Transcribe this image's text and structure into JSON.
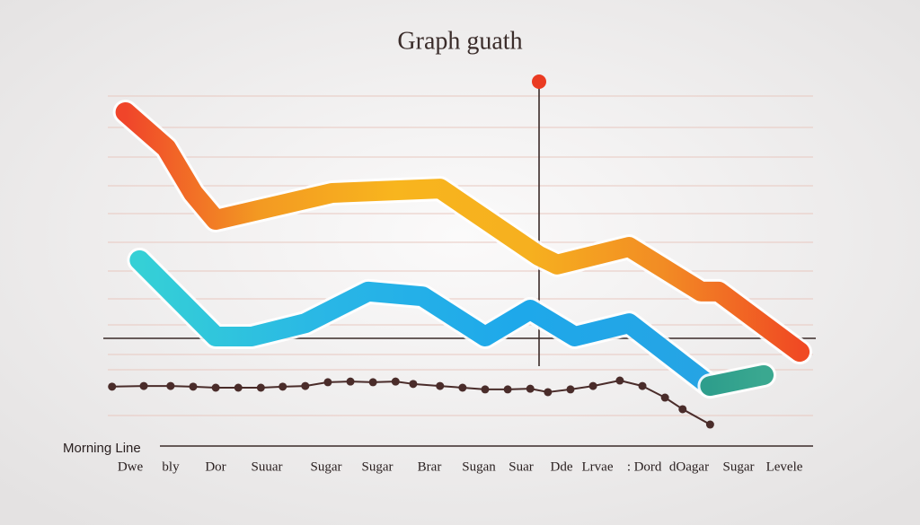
{
  "chart_data": {
    "type": "line",
    "title": "Graph  guath",
    "y_label": "Morning Line",
    "categories": [
      "Dwe",
      "bly",
      "Dor",
      "Suuar",
      "Sugar",
      "Sugar",
      "Brar",
      "Sugan",
      "Suar",
      "Dde",
      "Lrvae",
      ":",
      "Dord",
      "dOagar",
      "Sugar",
      "Levele"
    ],
    "xlim": [
      0,
      100
    ],
    "ylim": [
      -2,
      100
    ],
    "series": [
      {
        "colors": [
          "#f0452a",
          "#f39a22",
          "#f8b51e",
          "#f6b01f",
          "#f28b24",
          "#f04a23"
        ],
        "width": 22,
        "markers": false,
        "x": [
          2.5,
          8.3,
          12.1,
          15.3,
          31.8,
          47.1,
          61.1,
          63.7,
          73.9,
          84.1,
          86.6,
          98.1
        ],
        "values": [
          90.8,
          80.3,
          67.1,
          59.2,
          67.1,
          68.4,
          48.7,
          46.1,
          51.3,
          38.2,
          38.2,
          20.5
        ]
      },
      {
        "colors": [
          "#35d0d6",
          "#29b6e6",
          "#1ea8ea",
          "#26a4e4"
        ],
        "width": 22,
        "markers": false,
        "x": [
          4.5,
          15.3,
          20.4,
          28,
          36.9,
          44.6,
          53.5,
          59.9,
          66.2,
          73.9,
          85.4
        ],
        "values": [
          47.4,
          25,
          25,
          28.9,
          38.2,
          36.8,
          25,
          32.9,
          25,
          28.9,
          10.5
        ]
      },
      {
        "colors": [
          "#2e9e8c",
          "#3aa890"
        ],
        "width": 22,
        "markers": false,
        "x": [
          85.4,
          93
        ],
        "values": [
          10.5,
          13.7
        ]
      },
      {
        "colors": [
          "#4a2c2a"
        ],
        "width": 2,
        "markers": true,
        "x": [
          0.6,
          5.1,
          8.9,
          12.1,
          15.3,
          18.5,
          21.7,
          24.8,
          28,
          31.2,
          34.4,
          37.6,
          40.8,
          43.3,
          47.1,
          50.3,
          53.5,
          56.7,
          59.9,
          62.4,
          65.6,
          68.8,
          72.6,
          75.8,
          79,
          81.5,
          85.4
        ],
        "values": [
          10.3,
          10.5,
          10.5,
          10.3,
          10,
          10,
          10,
          10.3,
          10.5,
          11.6,
          11.8,
          11.6,
          11.8,
          11.1,
          10.5,
          10,
          9.5,
          9.5,
          9.7,
          8.7,
          9.5,
          10.5,
          12.1,
          10.5,
          7.1,
          3.7,
          -0.8
        ]
      }
    ]
  }
}
